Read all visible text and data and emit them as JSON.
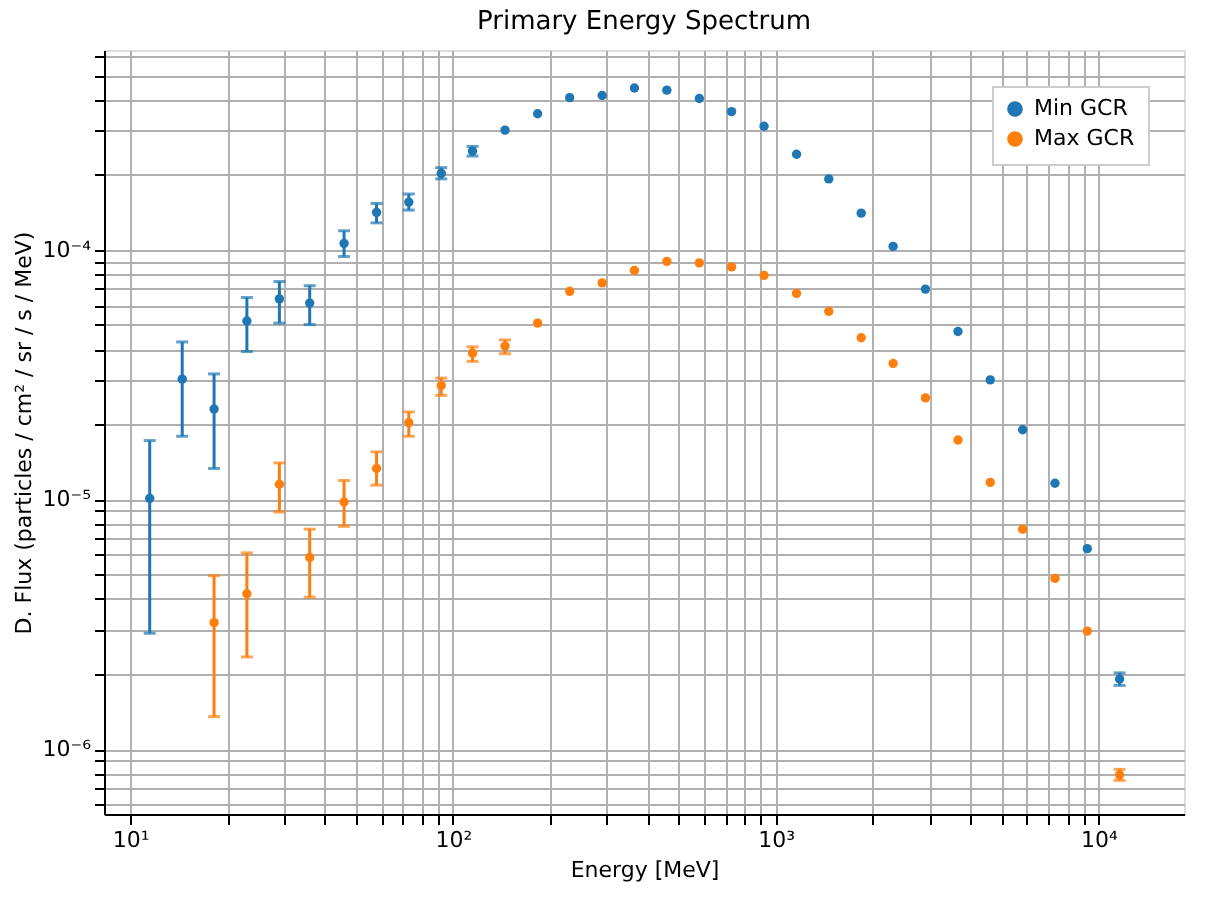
{
  "chart_data": {
    "type": "scatter",
    "title": "Primary Energy Spectrum",
    "xlabel": "Energy [MeV]",
    "ylabel": "D. Flux (particles / cm² / sr / s / MeV)",
    "log": "xy",
    "grid": true,
    "legend": "top right",
    "marker": "circle",
    "xlim": [
      8.3,
      18400
    ],
    "ylim": [
      5.5e-07,
      0.00063
    ],
    "xticks": [
      {
        "value": 10,
        "label": "10¹"
      },
      {
        "value": 20,
        "label": null
      },
      {
        "value": 30,
        "label": null
      },
      {
        "value": 40,
        "label": null
      },
      {
        "value": 50,
        "label": null
      },
      {
        "value": 60,
        "label": null
      },
      {
        "value": 70,
        "label": null
      },
      {
        "value": 80,
        "label": null
      },
      {
        "value": 90,
        "label": null
      },
      {
        "value": 100,
        "label": "10²"
      },
      {
        "value": 200,
        "label": null
      },
      {
        "value": 300,
        "label": null
      },
      {
        "value": 400,
        "label": null
      },
      {
        "value": 500,
        "label": null
      },
      {
        "value": 600,
        "label": null
      },
      {
        "value": 700,
        "label": null
      },
      {
        "value": 800,
        "label": null
      },
      {
        "value": 900,
        "label": null
      },
      {
        "value": 1000,
        "label": "10³"
      },
      {
        "value": 2000,
        "label": null
      },
      {
        "value": 3000,
        "label": null
      },
      {
        "value": 4000,
        "label": null
      },
      {
        "value": 5000,
        "label": null
      },
      {
        "value": 6000,
        "label": null
      },
      {
        "value": 7000,
        "label": null
      },
      {
        "value": 8000,
        "label": null
      },
      {
        "value": 9000,
        "label": null
      },
      {
        "value": 10000,
        "label": "10⁴"
      }
    ],
    "yticks": [
      {
        "value": 6e-07,
        "label": null
      },
      {
        "value": 7e-07,
        "label": null
      },
      {
        "value": 8e-07,
        "label": null
      },
      {
        "value": 9e-07,
        "label": null
      },
      {
        "value": 1e-06,
        "label": "10⁻⁶"
      },
      {
        "value": 2e-06,
        "label": null
      },
      {
        "value": 3e-06,
        "label": null
      },
      {
        "value": 4e-06,
        "label": null
      },
      {
        "value": 5e-06,
        "label": null
      },
      {
        "value": 6e-06,
        "label": null
      },
      {
        "value": 7e-06,
        "label": null
      },
      {
        "value": 8e-06,
        "label": null
      },
      {
        "value": 9e-06,
        "label": null
      },
      {
        "value": 1e-05,
        "label": "10⁻⁵"
      },
      {
        "value": 2e-05,
        "label": null
      },
      {
        "value": 3e-05,
        "label": null
      },
      {
        "value": 4e-05,
        "label": null
      },
      {
        "value": 5e-05,
        "label": null
      },
      {
        "value": 6e-05,
        "label": null
      },
      {
        "value": 7e-05,
        "label": null
      },
      {
        "value": 8e-05,
        "label": null
      },
      {
        "value": 9e-05,
        "label": null
      },
      {
        "value": 0.0001,
        "label": "10⁻⁴"
      },
      {
        "value": 0.0002,
        "label": null
      },
      {
        "value": 0.0003,
        "label": null
      },
      {
        "value": 0.0004,
        "label": null
      },
      {
        "value": 0.0005,
        "label": null
      },
      {
        "value": 0.0006,
        "label": null
      }
    ],
    "series": [
      {
        "name": "Min GCR",
        "color": "#1f77b4",
        "x": [
          11.5,
          14.5,
          18.2,
          23,
          29,
          36,
          46,
          58,
          73,
          92,
          115,
          145,
          183,
          230,
          290,
          365,
          460,
          580,
          730,
          920,
          1160,
          1460,
          1840,
          2310,
          2910,
          3670,
          4620,
          5820,
          7330,
          9230,
          11620
        ],
        "values": [
          1.01e-05,
          3.03e-05,
          2.3e-05,
          5.18e-05,
          6.35e-05,
          6.11e-05,
          0.000106,
          0.000141,
          0.000155,
          0.000202,
          0.000248,
          0.000301,
          0.00035,
          0.000406,
          0.000414,
          0.000444,
          0.000435,
          0.000403,
          0.000357,
          0.000312,
          0.000241,
          0.000192,
          0.00014,
          0.000103,
          6.95e-05,
          4.7e-05,
          3.01e-05,
          1.9e-05,
          1.16e-05,
          6.35e-06,
          1.91e-06
        ],
        "errors": [
          [
            2.91e-06,
            1.72e-05
          ],
          [
            1.79e-05,
            4.27e-05
          ],
          [
            1.33e-05,
            3.18e-05
          ],
          [
            3.91e-05,
            6.43e-05
          ],
          [
            5.08e-05,
            7.45e-05
          ],
          [
            5.01e-05,
            7.17e-05
          ],
          [
            9.38e-05,
            0.000119
          ],
          [
            0.000128,
            0.000153
          ],
          [
            0.000144,
            0.000167
          ],
          [
            0.000192,
            0.000213
          ],
          [
            0.000237,
            0.000259
          ],
          null,
          null,
          null,
          null,
          null,
          null,
          null,
          null,
          null,
          null,
          null,
          null,
          null,
          null,
          null,
          null,
          null,
          null,
          null,
          [
            1.8e-06,
            2.02e-06
          ]
        ]
      },
      {
        "name": "Max GCR",
        "color": "#ff7f0e",
        "x": [
          18.2,
          23,
          29,
          36,
          46,
          58,
          73,
          92,
          115,
          145,
          183,
          230,
          290,
          365,
          460,
          580,
          730,
          920,
          1160,
          1460,
          1840,
          2310,
          2910,
          3670,
          4620,
          5820,
          7330,
          9230,
          11620
        ],
        "values": [
          3.21e-06,
          4.19e-06,
          1.15e-05,
          5.85e-06,
          9.76e-06,
          1.33e-05,
          2.03e-05,
          2.86e-05,
          3.85e-05,
          4.11e-05,
          5.08e-05,
          6.81e-05,
          7.36e-05,
          8.26e-05,
          8.97e-05,
          8.85e-05,
          8.53e-05,
          7.89e-05,
          6.68e-05,
          5.66e-05,
          4.44e-05,
          3.5e-05,
          2.55e-05,
          1.73e-05,
          1.17e-05,
          7.6e-06,
          4.83e-06,
          2.97e-06,
          7.89e-07
        ],
        "errors": [
          [
            1.35e-06,
            4.95e-06
          ],
          [
            2.34e-06,
            6.11e-06
          ],
          [
            8.9e-06,
            1.4e-05
          ],
          [
            4.06e-06,
            7.6e-06
          ],
          [
            7.8e-06,
            1.19e-05
          ],
          [
            1.14e-05,
            1.55e-05
          ],
          [
            1.79e-05,
            2.24e-05
          ],
          [
            2.61e-05,
            3.06e-05
          ],
          [
            3.57e-05,
            4.08e-05
          ],
          [
            3.83e-05,
            4.35e-05
          ],
          null,
          null,
          null,
          null,
          null,
          null,
          null,
          null,
          null,
          null,
          null,
          null,
          null,
          null,
          null,
          null,
          null,
          null,
          [
            7.5e-07,
            8.3e-07
          ]
        ]
      }
    ]
  }
}
